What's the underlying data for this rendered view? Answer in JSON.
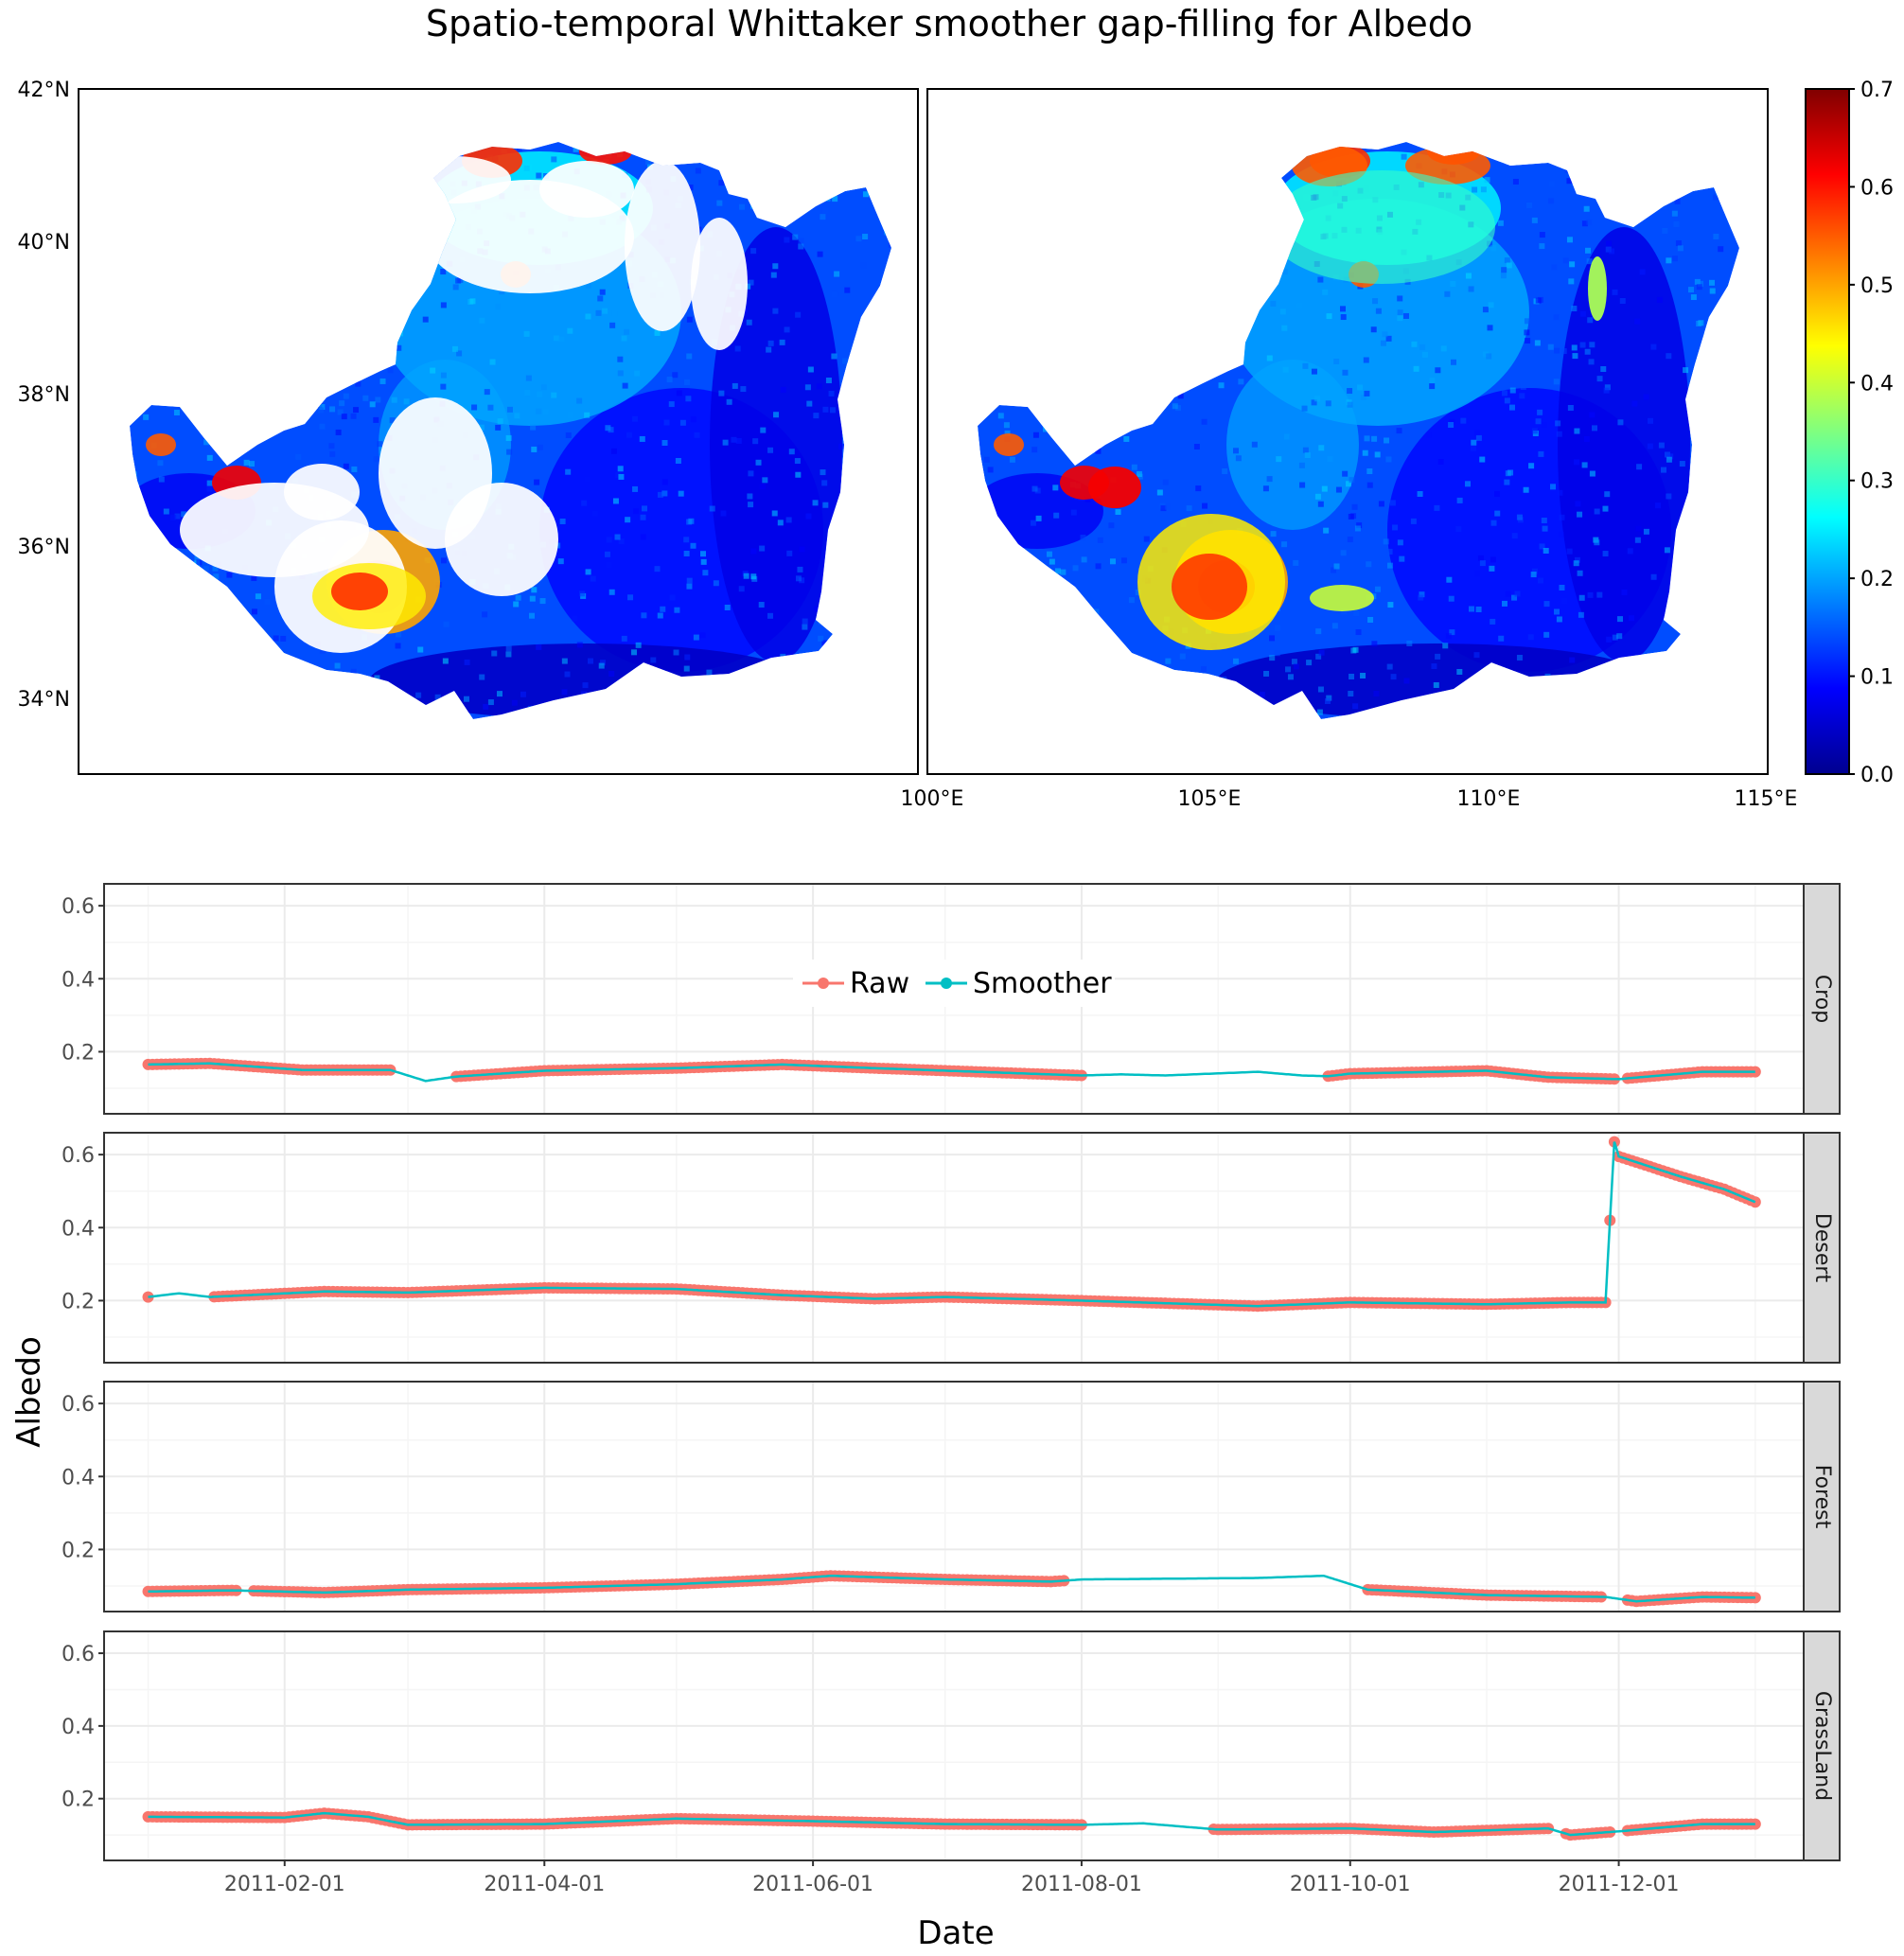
{
  "figure_title": "Spatio-temporal Whittaker smoother gap-filling for Albedo",
  "colors": {
    "raw": "#F8766D",
    "smoother": "#00BFC4",
    "strip_bg": "#D9D9D9",
    "grid_major": "#EBEBEB",
    "grid_minor": "#F5F5F5",
    "land_base": "#2b6ff0",
    "land_dark": "#0a20d8"
  },
  "chart_data": [
    {
      "type": "heatmap",
      "description_panels": [
        "raw",
        "gap-filled"
      ],
      "lat_ticks": [
        "42°N",
        "40°N",
        "38°N",
        "36°N",
        "34°N"
      ],
      "lon_ticks": [
        "100°E",
        "105°E",
        "110°E",
        "115°E"
      ],
      "colorbar": {
        "colormap": "jet",
        "ticks": [
          "0.7",
          "0.6",
          "0.5",
          "0.4",
          "0.3",
          "0.2",
          "0.1",
          "0.0"
        ],
        "range": [
          0.0,
          0.7
        ]
      },
      "panel_stats": [
        {
          "dominant_albedo": 0.18,
          "dark_fraction": 0.1,
          "missing_white_fraction": 0.2
        },
        {
          "dominant_albedo": 0.2,
          "dark_fraction": 0.1,
          "missing_white_fraction": 0.0
        }
      ]
    },
    {
      "type": "line",
      "xlabel": "Date",
      "ylabel": "Albedo",
      "x_range": [
        "2010-12-22",
        "2012-01-12"
      ],
      "ylim": [
        0.03,
        0.66
      ],
      "y_ticks": [
        "0.6",
        "0.4",
        "0.2"
      ],
      "x_ticks": [
        "2011-02-01",
        "2011-04-01",
        "2011-06-01",
        "2011-08-01",
        "2011-10-01",
        "2011-12-01"
      ],
      "legend": {
        "position": "inside-top",
        "entries": [
          "Raw",
          "Smoother"
        ]
      },
      "facets": [
        {
          "name": "Crop",
          "smoother": [
            [
              "2011-01-01",
              0.165
            ],
            [
              "2011-01-15",
              0.168
            ],
            [
              "2011-02-05",
              0.15
            ],
            [
              "2011-02-25",
              0.15
            ],
            [
              "2011-03-05",
              0.12
            ],
            [
              "2011-03-12",
              0.132
            ],
            [
              "2011-04-01",
              0.148
            ],
            [
              "2011-05-01",
              0.155
            ],
            [
              "2011-05-25",
              0.165
            ],
            [
              "2011-06-15",
              0.155
            ],
            [
              "2011-07-20",
              0.14
            ],
            [
              "2011-08-01",
              0.135
            ],
            [
              "2011-08-10",
              0.138
            ],
            [
              "2011-08-20",
              0.135
            ],
            [
              "2011-09-10",
              0.145
            ],
            [
              "2011-09-20",
              0.135
            ],
            [
              "2011-09-26",
              0.133
            ],
            [
              "2011-10-01",
              0.14
            ],
            [
              "2011-11-01",
              0.148
            ],
            [
              "2011-11-15",
              0.13
            ],
            [
              "2011-12-01",
              0.125
            ],
            [
              "2011-12-20",
              0.145
            ],
            [
              "2012-01-01",
              0.145
            ]
          ],
          "raw_gaps": [
            [
              "2011-02-26",
              "2011-03-11"
            ],
            [
              "2011-08-02",
              "2011-09-25"
            ],
            [
              "2011-12-01",
              "2011-12-02"
            ]
          ]
        },
        {
          "name": "Desert",
          "smoother": [
            [
              "2011-01-01",
              0.21
            ],
            [
              "2011-01-08",
              0.22
            ],
            [
              "2011-01-15",
              0.21
            ],
            [
              "2011-02-10",
              0.225
            ],
            [
              "2011-03-01",
              0.222
            ],
            [
              "2011-04-01",
              0.235
            ],
            [
              "2011-05-01",
              0.232
            ],
            [
              "2011-05-25",
              0.215
            ],
            [
              "2011-06-15",
              0.205
            ],
            [
              "2011-07-01",
              0.21
            ],
            [
              "2011-08-01",
              0.2
            ],
            [
              "2011-09-10",
              0.185
            ],
            [
              "2011-10-01",
              0.195
            ],
            [
              "2011-11-01",
              0.19
            ],
            [
              "2011-11-20",
              0.195
            ],
            [
              "2011-11-28",
              0.195
            ],
            [
              "2011-11-29",
              0.42
            ],
            [
              "2011-11-30",
              0.635
            ],
            [
              "2011-12-01",
              0.595
            ],
            [
              "2011-12-15",
              0.54
            ],
            [
              "2011-12-25",
              0.505
            ],
            [
              "2012-01-01",
              0.47
            ]
          ],
          "raw_gaps": [
            [
              "2011-01-02",
              "2011-01-15"
            ]
          ]
        },
        {
          "name": "Forest",
          "smoother": [
            [
              "2011-01-01",
              0.085
            ],
            [
              "2011-01-20",
              0.088
            ],
            [
              "2011-02-10",
              0.082
            ],
            [
              "2011-03-01",
              0.09
            ],
            [
              "2011-04-01",
              0.095
            ],
            [
              "2011-05-01",
              0.105
            ],
            [
              "2011-05-25",
              0.118
            ],
            [
              "2011-06-05",
              0.128
            ],
            [
              "2011-07-01",
              0.118
            ],
            [
              "2011-07-25",
              0.112
            ],
            [
              "2011-08-01",
              0.118
            ],
            [
              "2011-09-10",
              0.122
            ],
            [
              "2011-09-25",
              0.128
            ],
            [
              "2011-10-05",
              0.09
            ],
            [
              "2011-11-01",
              0.075
            ],
            [
              "2011-11-28",
              0.07
            ],
            [
              "2011-12-05",
              0.058
            ],
            [
              "2011-12-20",
              0.07
            ],
            [
              "2012-01-01",
              0.068
            ]
          ],
          "raw_gaps": [
            [
              "2011-01-22",
              "2011-01-24"
            ],
            [
              "2011-07-29",
              "2011-10-04"
            ],
            [
              "2011-11-28",
              "2011-12-02"
            ]
          ]
        },
        {
          "name": "GrassLand",
          "smoother": [
            [
              "2011-01-01",
              0.15
            ],
            [
              "2011-02-01",
              0.148
            ],
            [
              "2011-02-10",
              0.16
            ],
            [
              "2011-02-20",
              0.15
            ],
            [
              "2011-03-01",
              0.128
            ],
            [
              "2011-04-01",
              0.13
            ],
            [
              "2011-05-01",
              0.145
            ],
            [
              "2011-06-01",
              0.138
            ],
            [
              "2011-07-01",
              0.13
            ],
            [
              "2011-08-01",
              0.128
            ],
            [
              "2011-08-15",
              0.132
            ],
            [
              "2011-09-01",
              0.115
            ],
            [
              "2011-10-01",
              0.118
            ],
            [
              "2011-10-20",
              0.108
            ],
            [
              "2011-11-15",
              0.118
            ],
            [
              "2011-11-20",
              0.1
            ],
            [
              "2011-12-01",
              0.11
            ],
            [
              "2011-12-20",
              0.13
            ],
            [
              "2012-01-01",
              0.13
            ]
          ],
          "raw_gaps": [
            [
              "2011-08-02",
              "2011-08-30"
            ],
            [
              "2011-11-16",
              "2011-11-18"
            ],
            [
              "2011-11-30",
              "2011-12-02"
            ]
          ]
        }
      ]
    }
  ]
}
